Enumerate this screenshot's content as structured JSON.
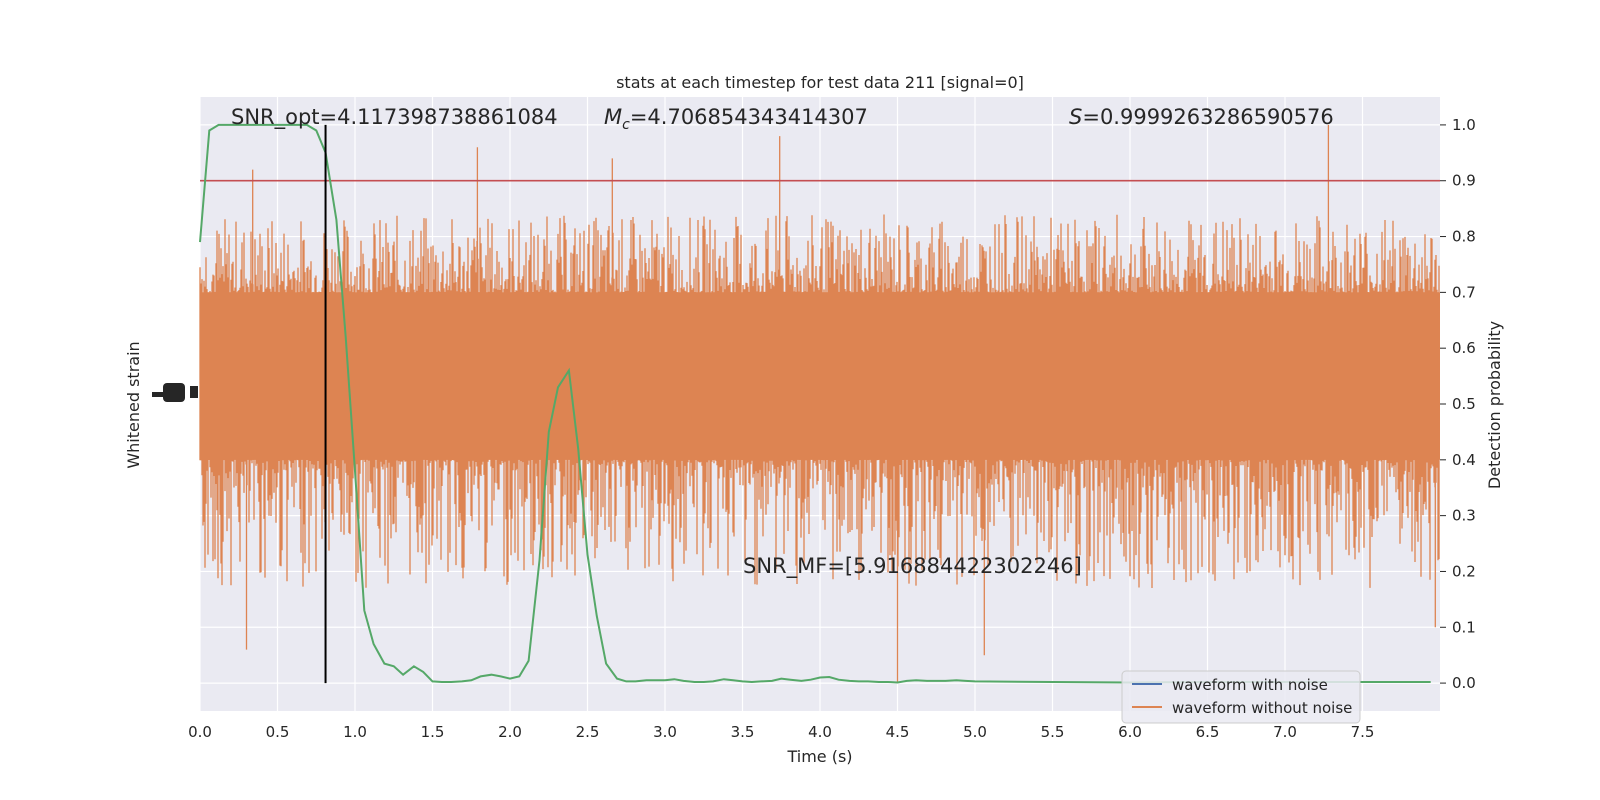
{
  "chart_data": {
    "type": "line",
    "title": "stats at each timestep for test data 211 [signal=0]",
    "xlabel": "Time (s)",
    "ylabel_left": "Whitened strain",
    "ylabel_right": "Detection probability",
    "xlim": [
      0.0,
      8.0
    ],
    "ylim_right": [
      -0.05,
      1.05
    ],
    "x_ticks": [
      "0.0",
      "0.5",
      "1.0",
      "1.5",
      "2.0",
      "2.5",
      "3.0",
      "3.5",
      "4.0",
      "4.5",
      "5.0",
      "5.5",
      "6.0",
      "6.5",
      "7.0",
      "7.5"
    ],
    "y_ticks_right": [
      "0.0",
      "0.1",
      "0.2",
      "0.3",
      "0.4",
      "0.5",
      "0.6",
      "0.7",
      "0.8",
      "0.9",
      "1.0"
    ],
    "grid": true,
    "legend_position": "bottom-right",
    "annotations": {
      "snr_opt": "SNR_opt=4.117398738861084",
      "mc_symbol": "M",
      "mc_sub": "c",
      "mc_value": "=4.706854343414307",
      "s_symbol": "S",
      "s_value": "=0.9999263286590576",
      "snr_mf": "SNR_MF=[5.916884422302246]"
    },
    "threshold": 0.9,
    "marker_time": 0.81,
    "series": [
      {
        "name": "waveform with noise",
        "color": "#4c72b0",
        "values": []
      },
      {
        "name": "waveform without noise",
        "color": "#dd8452",
        "values": [],
        "envelope": {
          "core_low": 0.4,
          "core_high": 0.7,
          "peak_high": 1.0,
          "peak_low": 0.0
        }
      },
      {
        "color": "#55a868",
        "x": [
          0.0,
          0.06,
          0.12,
          0.19,
          0.25,
          0.31,
          0.38,
          0.44,
          0.5,
          0.56,
          0.62,
          0.69,
          0.75,
          0.81,
          0.88,
          0.94,
          1.0,
          1.06,
          1.12,
          1.19,
          1.25,
          1.31,
          1.38,
          1.44,
          1.5,
          1.56,
          1.62,
          1.69,
          1.75,
          1.81,
          1.88,
          1.94,
          2.0,
          2.06,
          2.12,
          2.19,
          2.25,
          2.31,
          2.38,
          2.44,
          2.5,
          2.56,
          2.62,
          2.69,
          2.75,
          2.81,
          2.88,
          2.94,
          3.0,
          3.06,
          3.12,
          3.19,
          3.25,
          3.31,
          3.38,
          3.44,
          3.5,
          3.56,
          3.62,
          3.69,
          3.75,
          3.81,
          3.88,
          3.94,
          4.0,
          4.06,
          4.12,
          4.19,
          4.25,
          4.31,
          4.38,
          4.44,
          4.5,
          4.56,
          4.62,
          4.69,
          4.75,
          4.81,
          4.88,
          4.94,
          5.0,
          5.5,
          6.0,
          6.5,
          7.0,
          7.5,
          7.94
        ],
        "values": [
          0.79,
          0.99,
          1.0,
          1.0,
          1.0,
          1.0,
          1.0,
          1.0,
          1.0,
          1.0,
          1.0,
          1.0,
          0.99,
          0.95,
          0.83,
          0.62,
          0.38,
          0.13,
          0.07,
          0.035,
          0.03,
          0.015,
          0.03,
          0.02,
          0.003,
          0.002,
          0.002,
          0.003,
          0.005,
          0.012,
          0.015,
          0.012,
          0.008,
          0.012,
          0.04,
          0.22,
          0.45,
          0.53,
          0.56,
          0.42,
          0.23,
          0.12,
          0.035,
          0.008,
          0.003,
          0.003,
          0.005,
          0.005,
          0.005,
          0.007,
          0.004,
          0.002,
          0.002,
          0.003,
          0.007,
          0.005,
          0.003,
          0.002,
          0.003,
          0.004,
          0.008,
          0.006,
          0.004,
          0.006,
          0.01,
          0.011,
          0.006,
          0.004,
          0.003,
          0.003,
          0.002,
          0.002,
          0.001,
          0.004,
          0.005,
          0.004,
          0.004,
          0.004,
          0.005,
          0.004,
          0.003,
          0.002,
          0.001,
          0.002,
          0.002,
          0.002,
          0.002
        ]
      }
    ]
  },
  "colors": {
    "plot_bg": "#eaeaf2",
    "grid": "#ffffff",
    "threshold_line": "#c44e52",
    "marker_line": "#000000"
  }
}
